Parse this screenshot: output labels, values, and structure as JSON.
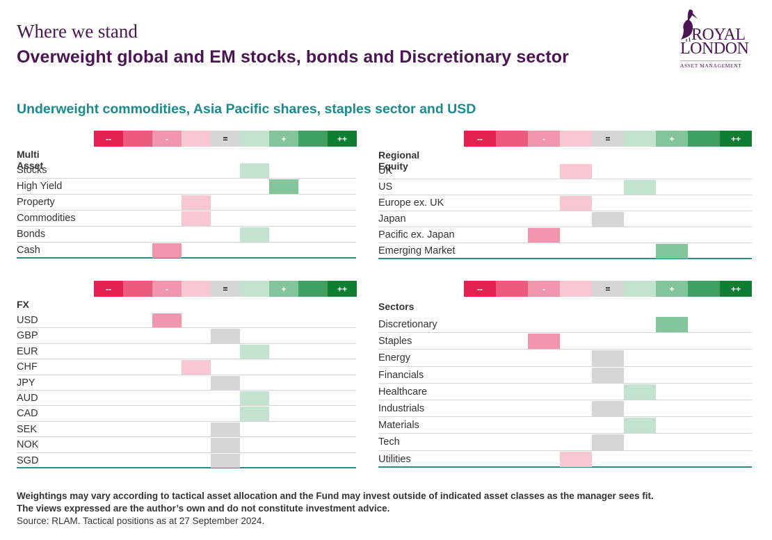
{
  "header": {
    "kicker": "Where we stand",
    "headline": "Overweight global and EM stocks, bonds and Discretionary sector",
    "subhead": "Underweight commodities, Asia Pacific shares, staples sector and USD"
  },
  "logo": {
    "word1": "ROYAL",
    "word2": "LONDON",
    "sub": "ASSET MANAGEMENT",
    "icon": "pelican-icon"
  },
  "scale": {
    "labels": [
      "--",
      "",
      "-",
      "",
      "=",
      "",
      "+",
      "",
      "++"
    ],
    "colors": [
      "#e3224f",
      "#ec5b7d",
      "#f296ad",
      "#f8c7d4",
      "#d6d6d6",
      "#c3e3cf",
      "#84c49a",
      "#3f9f63",
      "#0d7e32"
    ],
    "text_colors": [
      "#ffffff",
      "#ffffff",
      "#ffffff",
      "#ffffff",
      "#000000",
      "#ffffff",
      "#ffffff",
      "#ffffff",
      "#ffffff"
    ]
  },
  "panels": [
    {
      "title": "Multi Asset",
      "rows": [
        {
          "label": "Stocks",
          "level": 5
        },
        {
          "label": "High Yield",
          "level": 6
        },
        {
          "label": "Property",
          "level": 3
        },
        {
          "label": "Commodities",
          "level": 3
        },
        {
          "label": "Bonds",
          "level": 5
        },
        {
          "label": "Cash",
          "level": 2
        }
      ]
    },
    {
      "title": "Regional Equity",
      "rows": [
        {
          "label": "UK",
          "level": 3
        },
        {
          "label": "US",
          "level": 5
        },
        {
          "label": "Europe ex. UK",
          "level": 3
        },
        {
          "label": "Japan",
          "level": 4
        },
        {
          "label": "Pacific ex. Japan",
          "level": 2
        },
        {
          "label": "Emerging Market",
          "level": 6
        }
      ]
    },
    {
      "title": "FX",
      "rows": [
        {
          "label": "USD",
          "level": 2
        },
        {
          "label": "GBP",
          "level": 4
        },
        {
          "label": "EUR",
          "level": 5
        },
        {
          "label": "CHF",
          "level": 3
        },
        {
          "label": "JPY",
          "level": 4
        },
        {
          "label": "AUD",
          "level": 5
        },
        {
          "label": "CAD",
          "level": 5
        },
        {
          "label": "SEK",
          "level": 4
        },
        {
          "label": "NOK",
          "level": 4
        },
        {
          "label": "SGD",
          "level": 4
        }
      ]
    },
    {
      "title": "Sectors",
      "rows": [
        {
          "label": "Discretionary",
          "level": 6
        },
        {
          "label": "Staples",
          "level": 2
        },
        {
          "label": "Energy",
          "level": 4
        },
        {
          "label": "Financials",
          "level": 4
        },
        {
          "label": "Healthcare",
          "level": 5
        },
        {
          "label": "Industrials",
          "level": 4
        },
        {
          "label": "Materials",
          "level": 5
        },
        {
          "label": "Tech",
          "level": 4
        },
        {
          "label": "Utilities",
          "level": 3
        }
      ]
    }
  ],
  "footer": {
    "disclaimer1": "Weightings may vary according to tactical asset allocation and the Fund may invest outside of indicated asset classes as the manager sees fit.",
    "disclaimer2": "The views expressed are the author’s own and do not constitute investment advice.",
    "source": "Source: RLAM. Tactical positions as at 27 September 2024."
  }
}
